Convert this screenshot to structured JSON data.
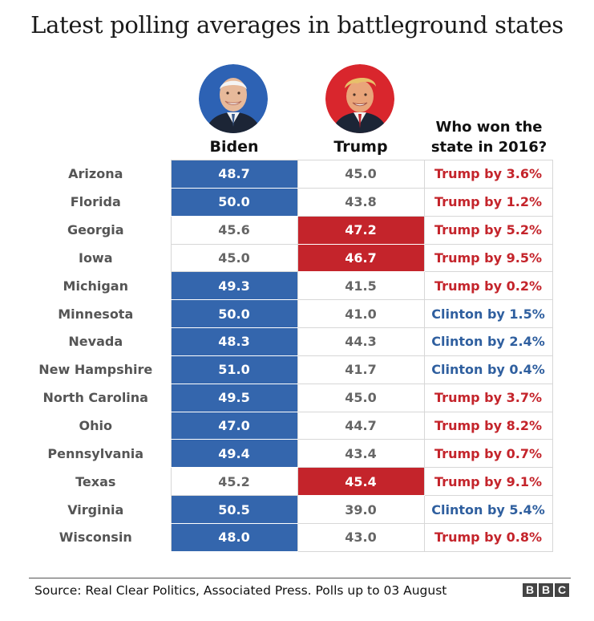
{
  "title": "Latest polling averages in battleground states",
  "columns": {
    "biden": "Biden",
    "trump": "Trump",
    "won_2016": "Who won the state in 2016?"
  },
  "colors": {
    "biden_blue": "#3466ad",
    "trump_red": "#c4242b",
    "clinton_text": "#2f5f9f"
  },
  "icons": {
    "biden_portrait": "biden-portrait-icon",
    "trump_portrait": "trump-portrait-icon"
  },
  "chart_data": {
    "type": "table",
    "title": "Latest polling averages in battleground states",
    "columns": [
      "Biden",
      "Trump",
      "Who won the state in 2016?"
    ],
    "rows": [
      {
        "state": "Arizona",
        "biden": "48.7",
        "trump": "45.0",
        "won_2016": "Trump by 3.6%",
        "winner_2016": "Trump"
      },
      {
        "state": "Florida",
        "biden": "50.0",
        "trump": "43.8",
        "won_2016": "Trump by 1.2%",
        "winner_2016": "Trump"
      },
      {
        "state": "Georgia",
        "biden": "45.6",
        "trump": "47.2",
        "won_2016": "Trump by 5.2%",
        "winner_2016": "Trump"
      },
      {
        "state": "Iowa",
        "biden": "45.0",
        "trump": "46.7",
        "won_2016": "Trump by 9.5%",
        "winner_2016": "Trump"
      },
      {
        "state": "Michigan",
        "biden": "49.3",
        "trump": "41.5",
        "won_2016": "Trump by 0.2%",
        "winner_2016": "Trump"
      },
      {
        "state": "Minnesota",
        "biden": "50.0",
        "trump": "41.0",
        "won_2016": "Clinton by 1.5%",
        "winner_2016": "Clinton"
      },
      {
        "state": "Nevada",
        "biden": "48.3",
        "trump": "44.3",
        "won_2016": "Clinton by 2.4%",
        "winner_2016": "Clinton"
      },
      {
        "state": "New Hampshire",
        "biden": "51.0",
        "trump": "41.7",
        "won_2016": "Clinton by 0.4%",
        "winner_2016": "Clinton"
      },
      {
        "state": "North Carolina",
        "biden": "49.5",
        "trump": "45.0",
        "won_2016": "Trump by 3.7%",
        "winner_2016": "Trump"
      },
      {
        "state": "Ohio",
        "biden": "47.0",
        "trump": "44.7",
        "won_2016": "Trump by 8.2%",
        "winner_2016": "Trump"
      },
      {
        "state": "Pennsylvania",
        "biden": "49.4",
        "trump": "43.4",
        "won_2016": "Trump by 0.7%",
        "winner_2016": "Trump"
      },
      {
        "state": "Texas",
        "biden": "45.2",
        "trump": "45.4",
        "won_2016": "Trump by 9.1%",
        "winner_2016": "Trump"
      },
      {
        "state": "Virginia",
        "biden": "50.5",
        "trump": "39.0",
        "won_2016": "Clinton by 5.4%",
        "winner_2016": "Clinton"
      },
      {
        "state": "Wisconsin",
        "biden": "48.0",
        "trump": "43.0",
        "won_2016": "Trump by 0.8%",
        "winner_2016": "Trump"
      }
    ]
  },
  "footer": {
    "source": "Source: Real Clear Politics, Associated Press. Polls up to 03 August",
    "logo_letters": [
      "B",
      "B",
      "C"
    ]
  }
}
